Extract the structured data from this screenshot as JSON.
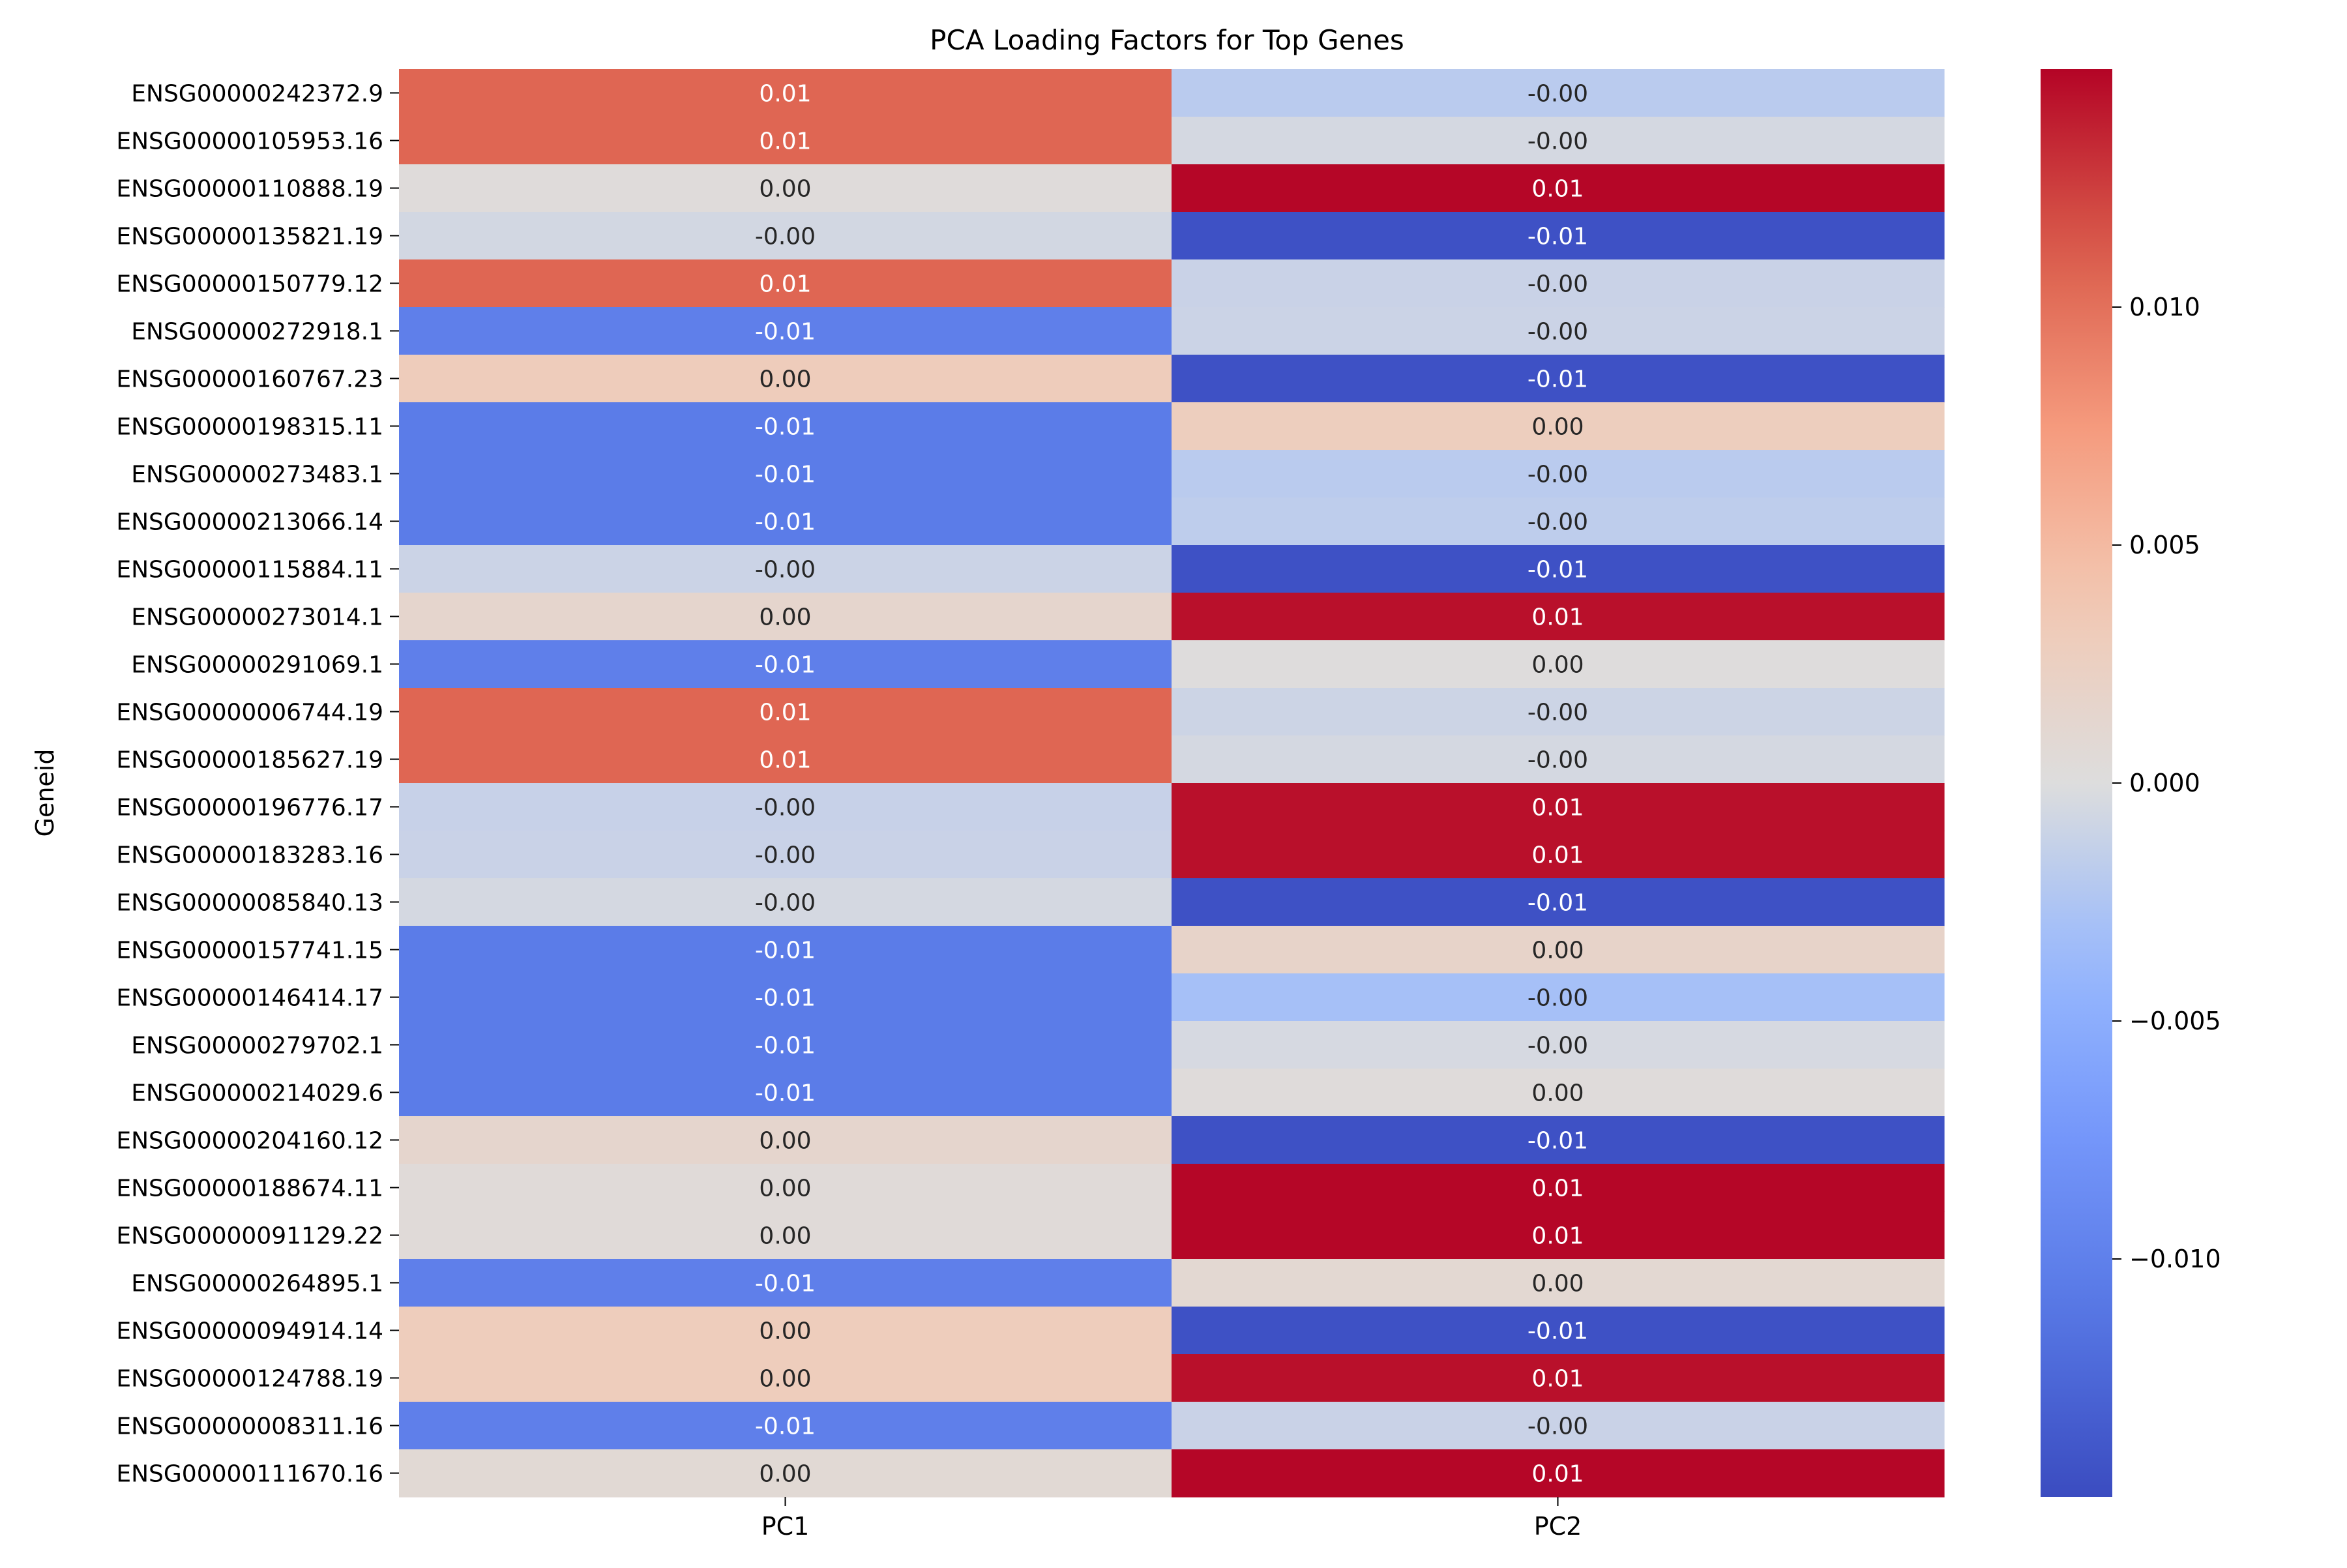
{
  "chart_data": {
    "type": "heatmap",
    "title": "PCA Loading Factors for Top Genes",
    "xlabel": "",
    "ylabel": "Geneid",
    "columns": [
      "PC1",
      "PC2"
    ],
    "rows": [
      "ENSG00000242372.9",
      "ENSG00000105953.16",
      "ENSG00000110888.19",
      "ENSG00000135821.19",
      "ENSG00000150779.12",
      "ENSG00000272918.1",
      "ENSG00000160767.23",
      "ENSG00000198315.11",
      "ENSG00000273483.1",
      "ENSG00000213066.14",
      "ENSG00000115884.11",
      "ENSG00000273014.1",
      "ENSG00000291069.1",
      "ENSG00000006744.19",
      "ENSG00000185627.19",
      "ENSG00000196776.17",
      "ENSG00000183283.16",
      "ENSG00000085840.13",
      "ENSG00000157741.15",
      "ENSG00000146414.17",
      "ENSG00000279702.1",
      "ENSG00000214029.6",
      "ENSG00000204160.12",
      "ENSG00000188674.11",
      "ENSG00000091129.22",
      "ENSG00000264895.1",
      "ENSG00000094914.14",
      "ENSG00000124788.19",
      "ENSG00000008311.16",
      "ENSG00000111670.16"
    ],
    "values": [
      [
        0.0106,
        -0.0019
      ],
      [
        0.0106,
        -0.0005
      ],
      [
        0.0003,
        0.0149
      ],
      [
        -0.0006,
        -0.0145
      ],
      [
        0.0106,
        -0.0011
      ],
      [
        -0.0101,
        -0.001
      ],
      [
        0.0031,
        -0.0145
      ],
      [
        -0.0105,
        0.0028
      ],
      [
        -0.0105,
        -0.0019
      ],
      [
        -0.0105,
        -0.0017
      ],
      [
        -0.001,
        -0.0145
      ],
      [
        0.0015,
        0.0145
      ],
      [
        -0.0101,
        0.0001
      ],
      [
        0.0106,
        -0.0009
      ],
      [
        0.0106,
        -0.0005
      ],
      [
        -0.0012,
        0.0145
      ],
      [
        -0.0011,
        0.0145
      ],
      [
        -0.0005,
        -0.0145
      ],
      [
        -0.0105,
        0.0018
      ],
      [
        -0.0105,
        -0.003
      ],
      [
        -0.0105,
        -0.0004
      ],
      [
        -0.0105,
        0.0003
      ],
      [
        0.0015,
        -0.0145
      ],
      [
        0.0005,
        0.0149
      ],
      [
        0.0005,
        0.0149
      ],
      [
        -0.0101,
        0.001
      ],
      [
        0.003,
        -0.0145
      ],
      [
        0.003,
        0.0145
      ],
      [
        -0.0101,
        -0.0011
      ],
      [
        0.0008,
        0.0149
      ]
    ],
    "annotations": [
      [
        "0.01",
        "-0.00"
      ],
      [
        "0.01",
        "-0.00"
      ],
      [
        "0.00",
        "0.01"
      ],
      [
        "-0.00",
        "-0.01"
      ],
      [
        "0.01",
        "-0.00"
      ],
      [
        "-0.01",
        "-0.00"
      ],
      [
        "0.00",
        "-0.01"
      ],
      [
        "-0.01",
        "0.00"
      ],
      [
        "-0.01",
        "-0.00"
      ],
      [
        "-0.01",
        "-0.00"
      ],
      [
        "-0.00",
        "-0.01"
      ],
      [
        "0.00",
        "0.01"
      ],
      [
        "-0.01",
        "0.00"
      ],
      [
        "0.01",
        "-0.00"
      ],
      [
        "0.01",
        "-0.00"
      ],
      [
        "-0.00",
        "0.01"
      ],
      [
        "-0.00",
        "0.01"
      ],
      [
        "-0.00",
        "-0.01"
      ],
      [
        "-0.01",
        "0.00"
      ],
      [
        "-0.01",
        "-0.00"
      ],
      [
        "-0.01",
        "-0.00"
      ],
      [
        "-0.01",
        "0.00"
      ],
      [
        "0.00",
        "-0.01"
      ],
      [
        "0.00",
        "0.01"
      ],
      [
        "0.00",
        "0.01"
      ],
      [
        "-0.01",
        "0.00"
      ],
      [
        "0.00",
        "-0.01"
      ],
      [
        "0.00",
        "0.01"
      ],
      [
        "-0.01",
        "-0.00"
      ],
      [
        "0.00",
        "0.01"
      ]
    ],
    "colormap": "coolwarm",
    "vmin": -0.015,
    "vmax": 0.015,
    "colorbar_ticks": [
      0.01,
      0.005,
      0.0,
      -0.005,
      -0.01
    ],
    "colorbar_tick_labels": [
      "0.010",
      "0.005",
      "0.000",
      "−0.005",
      "−0.010"
    ],
    "grid": false,
    "legend": "colorbar-right"
  }
}
